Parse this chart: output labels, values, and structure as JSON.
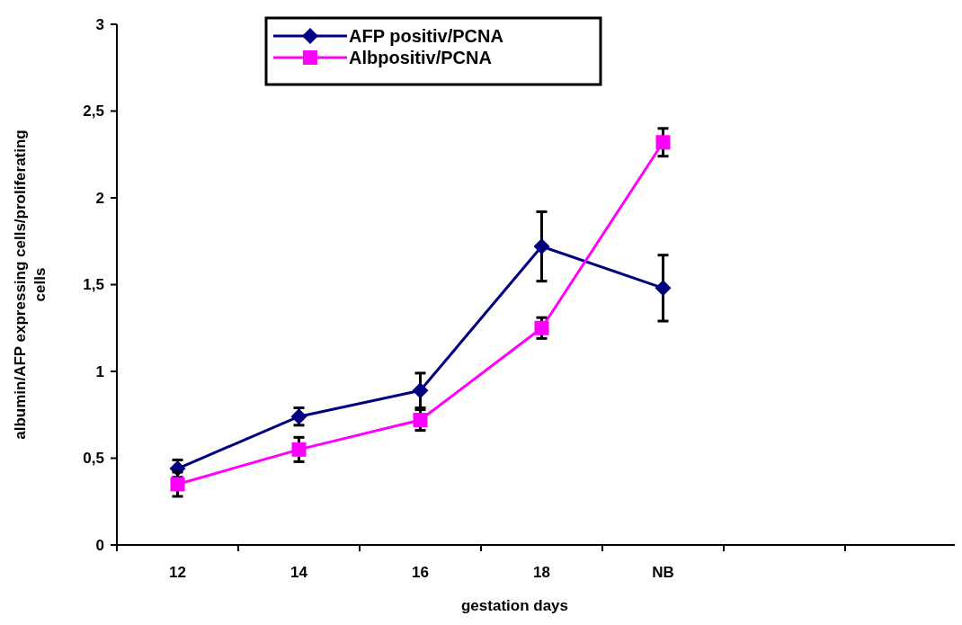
{
  "chart_data": {
    "type": "line",
    "xlabel": "gestation days",
    "ylabel": "albumin/AFP expressing cells/proliferating cells",
    "categories": [
      "12",
      "14",
      "16",
      "18",
      "NB",
      null,
      null
    ],
    "ylim": [
      0,
      3
    ],
    "yticks": [
      0,
      {
        "value": 0.5,
        "label": "0,5"
      },
      1,
      {
        "value": 1.5,
        "label": "1,5"
      },
      2,
      {
        "value": 2.5,
        "label": "2,5"
      },
      3
    ],
    "legend": "top",
    "grid": false,
    "series": [
      {
        "name": "AFP positiv/PCNA",
        "color": "#000080",
        "marker": "diamond",
        "values": [
          0.44,
          0.74,
          0.89,
          1.72,
          1.48,
          null,
          null
        ],
        "errors": [
          0.05,
          0.05,
          0.1,
          0.2,
          0.19,
          null,
          null
        ]
      },
      {
        "name": "Albpositiv/PCNA",
        "color": "#ff00ff",
        "marker": "square",
        "values": [
          0.35,
          0.55,
          0.72,
          1.25,
          2.32,
          null,
          null
        ],
        "errors": [
          0.07,
          0.07,
          0.06,
          0.06,
          0.08,
          null,
          null
        ]
      }
    ]
  }
}
